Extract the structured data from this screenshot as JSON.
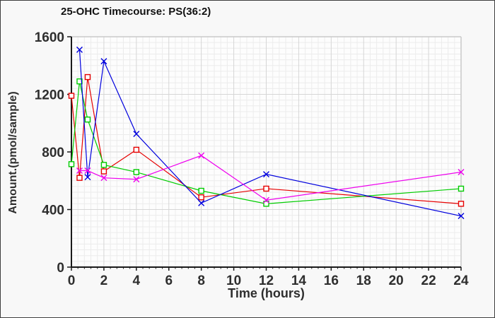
{
  "chart_data": {
    "type": "line",
    "title": "25-OHC Timecourse: PS(36:2)",
    "xlabel": "Time (hours)",
    "ylabel": "Amount.(pmol/sample)",
    "x": [
      0,
      0.5,
      1,
      2,
      4,
      8,
      12,
      24
    ],
    "series": [
      {
        "name": "red-open-squares",
        "color": "#e60000",
        "marker": "square",
        "values": [
          1190,
          620,
          1320,
          665,
          815,
          485,
          545,
          440
        ]
      },
      {
        "name": "green-open-squares",
        "color": "#00cc00",
        "marker": "square",
        "values": [
          715,
          1290,
          1025,
          710,
          660,
          530,
          440,
          545
        ]
      },
      {
        "name": "blue-crosses",
        "color": "#0000dd",
        "marker": "x",
        "values": [
          null,
          1510,
          625,
          1430,
          925,
          445,
          645,
          355
        ]
      },
      {
        "name": "magenta-crosses",
        "color": "#ee00ee",
        "marker": "x",
        "values": [
          null,
          670,
          670,
          620,
          610,
          775,
          465,
          660
        ]
      }
    ],
    "xlim": [
      0,
      24
    ],
    "ylim": [
      0,
      1600
    ],
    "xticks": [
      0,
      2,
      4,
      6,
      8,
      10,
      12,
      14,
      16,
      18,
      20,
      22,
      24
    ],
    "yticks": [
      0,
      400,
      800,
      1200,
      1600
    ],
    "minor_x_step": 0.4,
    "minor_y_step": 40,
    "grid": true,
    "legend": false,
    "colors": {
      "axis": "#1a1a1a",
      "frame": "#c9c9c9",
      "major_grid": "#d6d6d6",
      "minor_grid": "#ececec",
      "tick_label": "#2e2e2e",
      "plot_background": "#fdfdfd"
    }
  }
}
